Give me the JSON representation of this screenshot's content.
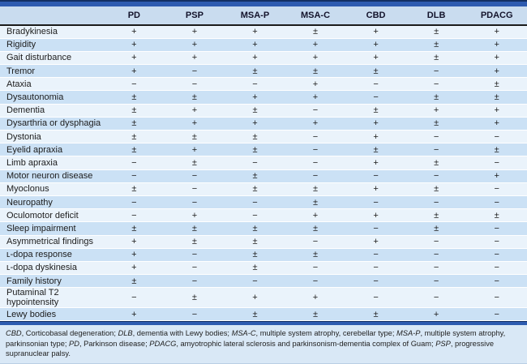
{
  "table": {
    "columns": [
      "PD",
      "PSP",
      "MSA-P",
      "MSA-C",
      "CBD",
      "DLB",
      "PDACG"
    ],
    "rows": [
      {
        "feature": "Bradykinesia",
        "values": [
          "+",
          "+",
          "+",
          "±",
          "+",
          "±",
          "+"
        ]
      },
      {
        "feature": "Rigidity",
        "values": [
          "+",
          "+",
          "+",
          "+",
          "+",
          "±",
          "+"
        ]
      },
      {
        "feature": "Gait disturbance",
        "values": [
          "+",
          "+",
          "+",
          "+",
          "+",
          "±",
          "+"
        ]
      },
      {
        "feature": "Tremor",
        "values": [
          "+",
          "−",
          "±",
          "±",
          "±",
          "−",
          "+"
        ]
      },
      {
        "feature": "Ataxia",
        "values": [
          "−",
          "−",
          "−",
          "+",
          "−",
          "−",
          "±"
        ]
      },
      {
        "feature": "Dysautonomia",
        "values": [
          "±",
          "±",
          "+",
          "+",
          "−",
          "±",
          "±"
        ]
      },
      {
        "feature": "Dementia",
        "values": [
          "±",
          "+",
          "±",
          "−",
          "±",
          "+",
          "+"
        ]
      },
      {
        "feature": "Dysarthria or dysphagia",
        "values": [
          "±",
          "+",
          "+",
          "+",
          "+",
          "±",
          "+"
        ]
      },
      {
        "feature": "Dystonia",
        "values": [
          "±",
          "±",
          "±",
          "−",
          "+",
          "−",
          "−"
        ]
      },
      {
        "feature": "Eyelid apraxia",
        "values": [
          "±",
          "+",
          "±",
          "−",
          "±",
          "−",
          "±"
        ]
      },
      {
        "feature": "Limb apraxia",
        "values": [
          "−",
          "±",
          "−",
          "−",
          "+",
          "±",
          "−"
        ]
      },
      {
        "feature": "Motor neuron disease",
        "values": [
          "−",
          "−",
          "±",
          "−",
          "−",
          "−",
          "+"
        ]
      },
      {
        "feature": "Myoclonus",
        "values": [
          "±",
          "−",
          "±",
          "±",
          "+",
          "±",
          "−"
        ]
      },
      {
        "feature": "Neuropathy",
        "values": [
          "−",
          "−",
          "−",
          "±",
          "−",
          "−",
          "−"
        ]
      },
      {
        "feature": "Oculomotor deficit",
        "values": [
          "−",
          "+",
          "−",
          "+",
          "+",
          "±",
          "±"
        ]
      },
      {
        "feature": "Sleep impairment",
        "values": [
          "±",
          "±",
          "±",
          "±",
          "−",
          "±",
          "−"
        ]
      },
      {
        "feature": "Asymmetrical findings",
        "values": [
          "+",
          "±",
          "±",
          "−",
          "+",
          "−",
          "−"
        ]
      },
      {
        "feature": "ʟ-dopa response",
        "values": [
          "+",
          "−",
          "±",
          "±",
          "−",
          "−",
          "−"
        ]
      },
      {
        "feature": "ʟ-dopa dyskinesia",
        "values": [
          "+",
          "−",
          "±",
          "−",
          "−",
          "−",
          "−"
        ]
      },
      {
        "feature": "Family history",
        "values": [
          "±",
          "−",
          "−",
          "−",
          "−",
          "−",
          "−"
        ]
      },
      {
        "feature": "Putaminal T2 hypointensity",
        "values": [
          "−",
          "±",
          "+",
          "+",
          "−",
          "−",
          "−"
        ]
      },
      {
        "feature": "Lewy bodies",
        "values": [
          "+",
          "−",
          "±",
          "±",
          "±",
          "+",
          "−"
        ]
      }
    ]
  },
  "footnote": {
    "parts": [
      {
        "abbr": "CBD",
        "text": ", Corticobasal degeneration; "
      },
      {
        "abbr": "DLB",
        "text": ", dementia with Lewy bodies; "
      },
      {
        "abbr": "MSA-C",
        "text": ", multiple system atrophy, cerebellar type; "
      },
      {
        "abbr": "MSA-P",
        "text": ", multiple system atrophy, parkinsonian type; "
      },
      {
        "abbr": "PD",
        "text": ", Parkinson disease; "
      },
      {
        "abbr": "PDACG",
        "text": ", amyotrophic lateral sclerosis and parkinsonism-dementia complex of Guam; "
      },
      {
        "abbr": "PSP",
        "text": ", progressive supranuclear palsy."
      }
    ]
  },
  "colors": {
    "bar_blue": "#2d5bb0",
    "bar_navy": "#122f63",
    "header_bg": "#c9dcef",
    "header_rule": "#1b1b1b",
    "row_light": "#eaf3fb",
    "row_dark": "#cbe1f5",
    "footer_bg": "#d9e8f6"
  }
}
